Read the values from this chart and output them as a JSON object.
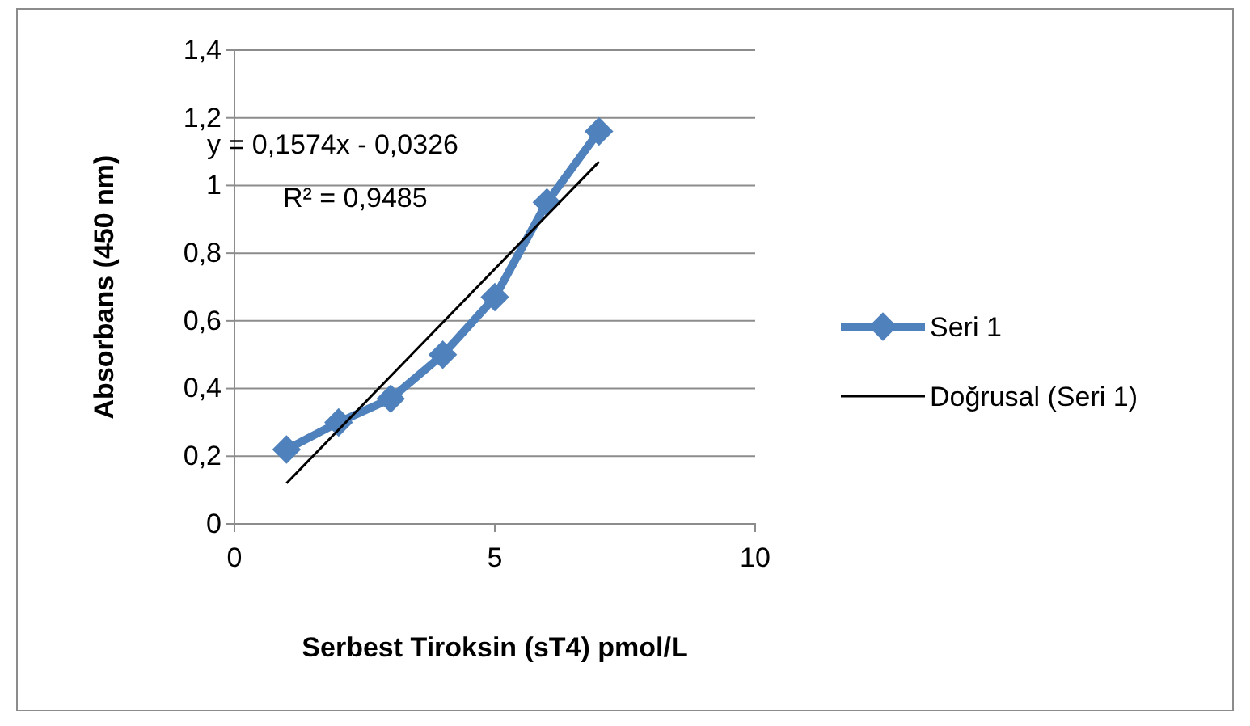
{
  "chart_data": {
    "type": "line",
    "xlabel": "Serbest Tiroksin (sT4) pmol/L",
    "ylabel": "Absorbans (450 nm)",
    "xlim": [
      0,
      10
    ],
    "xticks": [
      0,
      5,
      10
    ],
    "ylim": [
      0,
      1.4
    ],
    "yticks": [
      {
        "value": 0,
        "label": "0"
      },
      {
        "value": 0.2,
        "label": "0,2"
      },
      {
        "value": 0.4,
        "label": "0,4"
      },
      {
        "value": 0.6,
        "label": "0,6"
      },
      {
        "value": 0.8,
        "label": "0,8"
      },
      {
        "value": 1,
        "label": "1"
      },
      {
        "value": 1.2,
        "label": "1,2"
      },
      {
        "value": 1.4,
        "label": "1,4"
      }
    ],
    "grid": "y",
    "legend": "right",
    "marker": "diamond",
    "series": [
      {
        "name": "Seri 1",
        "color": "#4f81bd",
        "x": [
          1,
          2,
          3,
          4,
          5,
          6,
          7
        ],
        "values": [
          0.22,
          0.3,
          0.37,
          0.5,
          0.67,
          0.95,
          1.16
        ]
      },
      {
        "name": "Doğrusal (Seri 1)",
        "type": "line",
        "color": "#000000",
        "marker": "none",
        "x": [
          1,
          7
        ],
        "values": [
          0.12,
          1.07
        ]
      }
    ],
    "annotations": [
      "y = 0,1574x - 0,0326",
      "R² = 0,9485"
    ]
  }
}
